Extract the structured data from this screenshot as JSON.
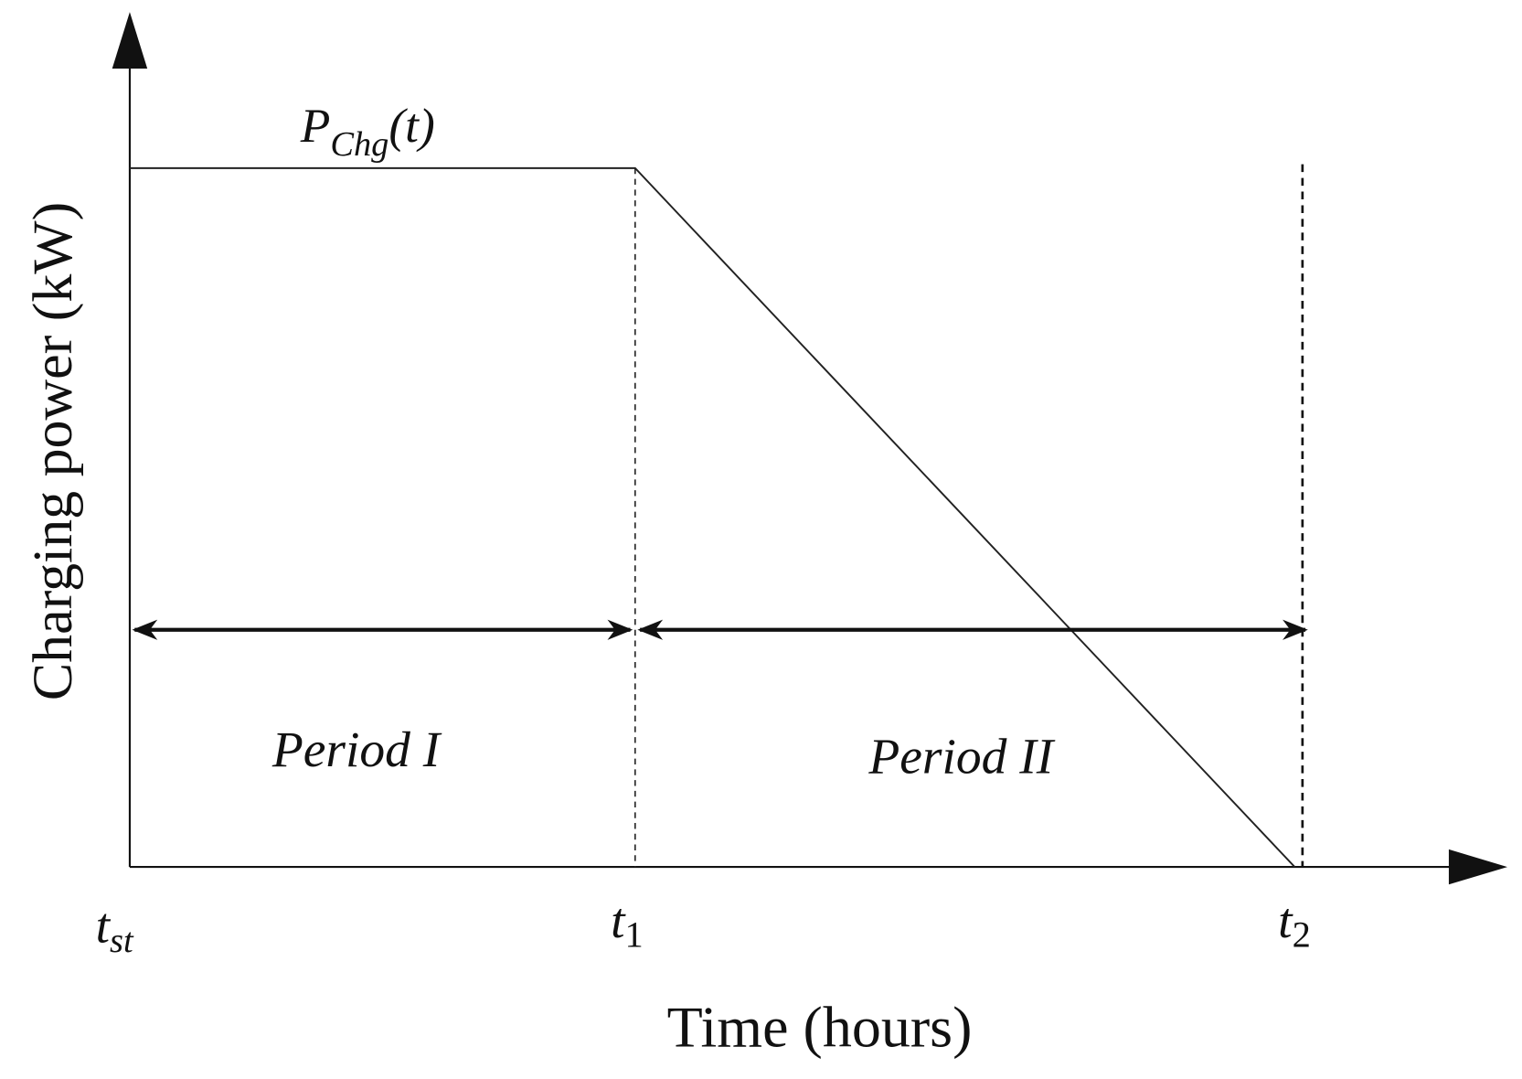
{
  "axes": {
    "y_label": "Charging power (kW)",
    "x_label": "Time (hours)"
  },
  "curve_label": {
    "main": "P",
    "sub": "Chg",
    "arg": "(t)"
  },
  "periods": [
    {
      "label": "Period I"
    },
    {
      "label": "Period II"
    }
  ],
  "time_marks": [
    {
      "main": "t",
      "sub": "st"
    },
    {
      "main": "t",
      "sub": "1"
    },
    {
      "main": "t",
      "sub": "2"
    }
  ]
}
